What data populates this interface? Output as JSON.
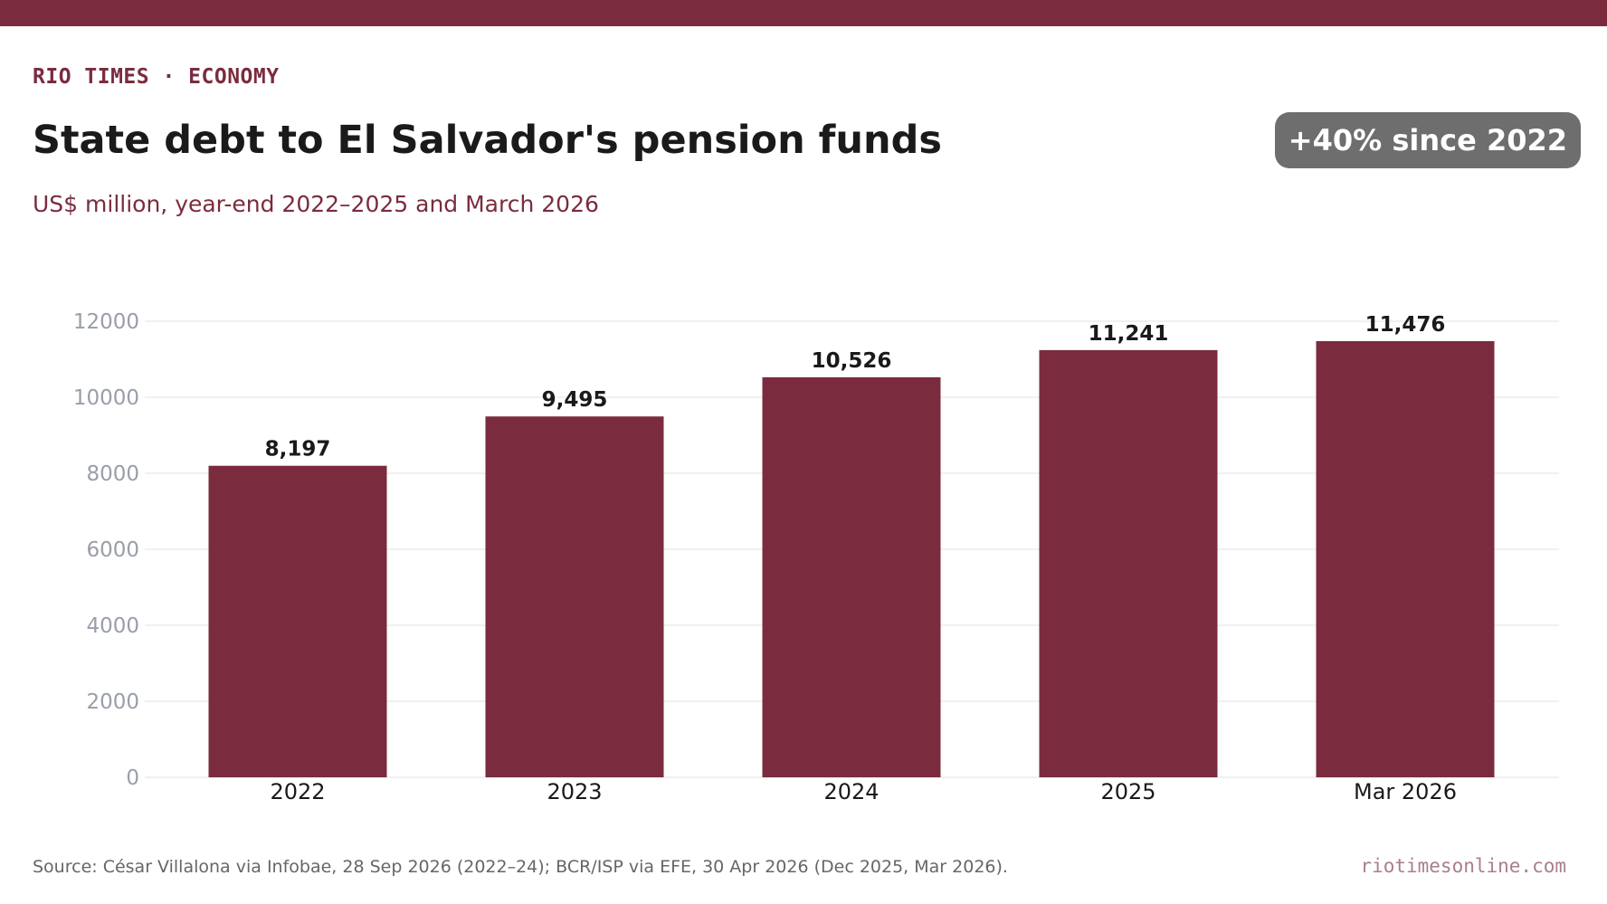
{
  "header": {
    "kicker": "RIO TIMES · ECONOMY",
    "title": "State debt to El Salvador's pension funds",
    "subtitle": "US$ million, year-end 2022–2025 and March 2026",
    "badge": "+40% since 2022"
  },
  "footer": {
    "source": "Source: César Villalona via Infobae, 28 Sep 2026 (2022–24); BCR/ISP via EFE, 30 Apr 2026 (Dec 2025, Mar 2026).",
    "site": "riotimesonline.com"
  },
  "colors": {
    "brand": "#7a2c3e",
    "badge": "#6e6e6e",
    "grid": "#e6e6e6",
    "tick": "#999ea8"
  },
  "chart_data": {
    "type": "bar",
    "categories": [
      "2022",
      "2023",
      "2024",
      "2025",
      "Mar 2026"
    ],
    "values": [
      8197,
      9495,
      10526,
      11241,
      11476
    ],
    "value_labels": [
      "8,197",
      "9,495",
      "10,526",
      "11,241",
      "11,476"
    ],
    "yticks": [
      0,
      2000,
      4000,
      6000,
      8000,
      10000,
      12000
    ],
    "ylim": [
      0,
      12000
    ],
    "grid": true,
    "legend": "none",
    "title": "State debt to El Salvador's pension funds",
    "subtitle": "US$ million, year-end 2022–2025 and March 2026",
    "xlabel": "",
    "ylabel": ""
  }
}
